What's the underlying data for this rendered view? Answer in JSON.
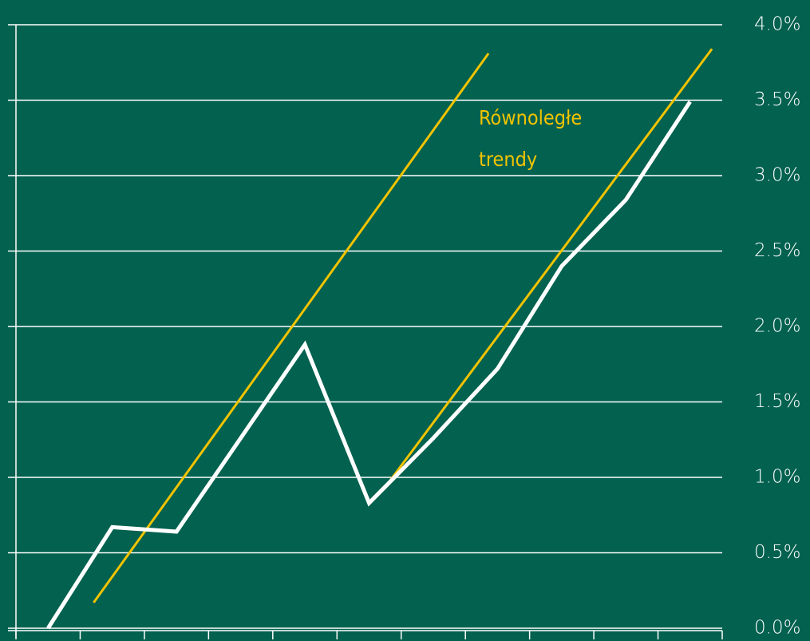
{
  "chart_data": {
    "type": "line",
    "categories": [
      null,
      null,
      null,
      null,
      null,
      null,
      null,
      null,
      null,
      null,
      null
    ],
    "series": [
      {
        "color": "#ffffff",
        "values": [
          0.0,
          0.67,
          0.64,
          1.26,
          1.88,
          0.83,
          1.26,
          1.72,
          2.4,
          2.84,
          3.49
        ]
      }
    ],
    "ylim": [
      0,
      4
    ],
    "yticks": [
      {
        "value": 0,
        "label": "0.0%"
      },
      {
        "value": 0.5,
        "label": "0.5%"
      },
      {
        "value": 1,
        "label": "1.0%"
      },
      {
        "value": 1.5,
        "label": "1.5%"
      },
      {
        "value": 2,
        "label": "2.0%"
      },
      {
        "value": 2.5,
        "label": "2.5%"
      },
      {
        "value": 3,
        "label": "3.0%"
      },
      {
        "value": 3.5,
        "label": "3.5%"
      },
      {
        "value": 4,
        "label": "4.0%"
      }
    ],
    "grid": true,
    "y_axis_side": "right",
    "trend_lines": [
      {
        "color": "#f2c300",
        "x": [
          0.71,
          6.86
        ],
        "y": [
          0.17,
          3.81
        ]
      },
      {
        "color": "#f2c300",
        "x": [
          5.26,
          10.34
        ],
        "y": [
          0.94,
          3.84
        ]
      }
    ],
    "annotation": {
      "lines": [
        "Równoległe",
        "trendy"
      ],
      "color": "#f2c300"
    }
  }
}
